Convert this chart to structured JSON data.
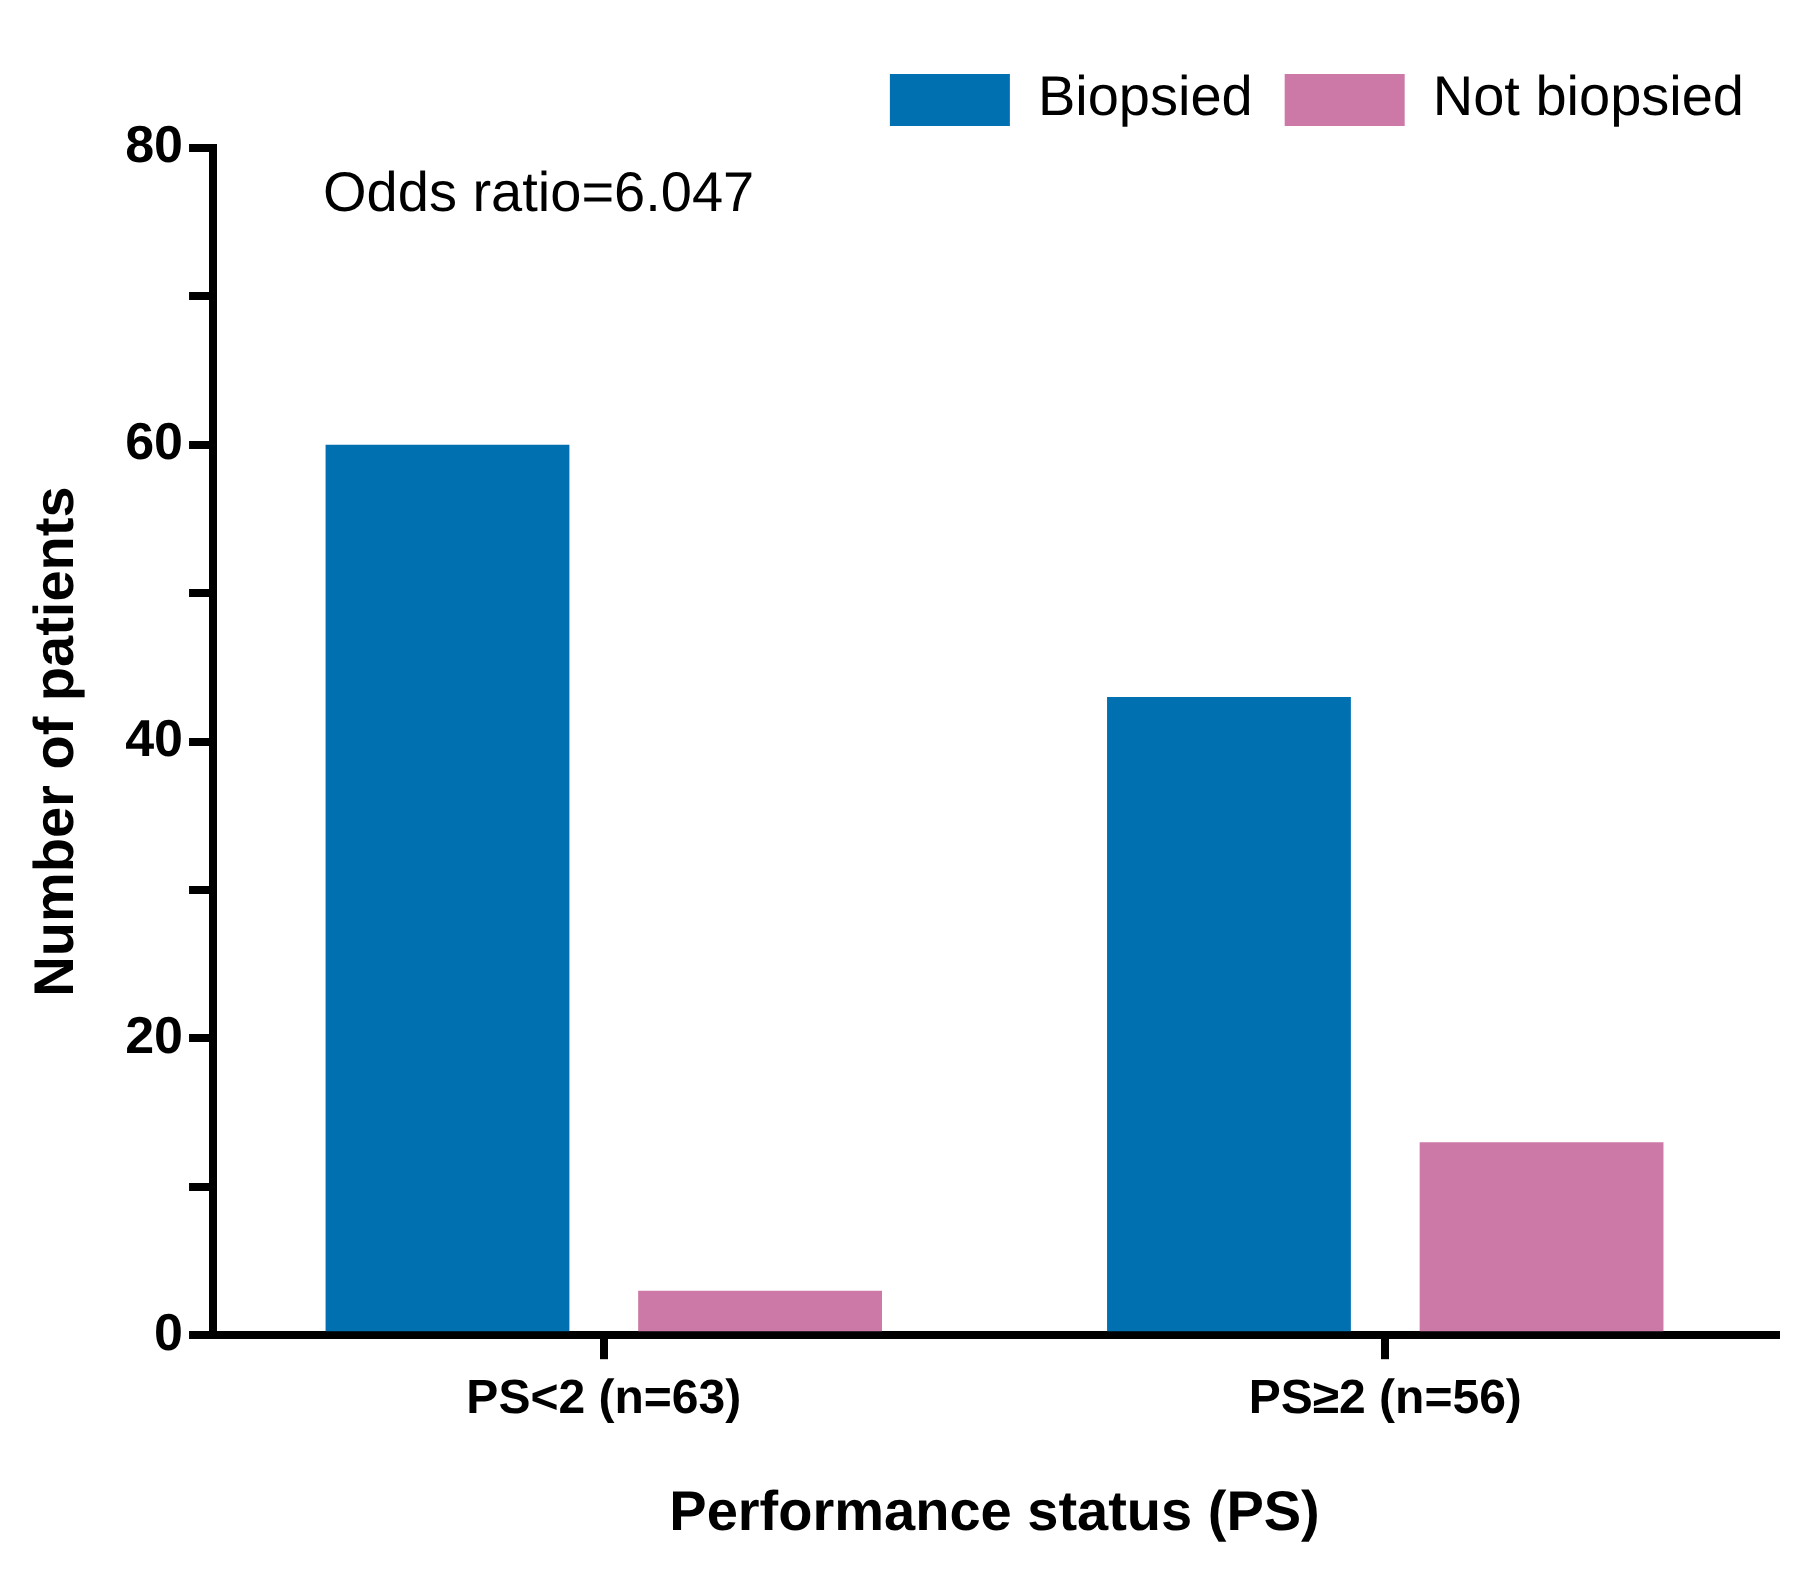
{
  "chart_data": {
    "type": "bar",
    "xlabel": "Performance status (PS)",
    "ylabel": "Number of patients",
    "categories": [
      "PS<2 (n=63)",
      "PS≥2 (n=56)"
    ],
    "series": [
      {
        "name": "Biopsied",
        "color": "#0070b0",
        "values": [
          60,
          43
        ]
      },
      {
        "name": "Not biopsied",
        "color": "#cc79a7",
        "values": [
          3,
          13
        ]
      }
    ],
    "ylim": [
      0,
      80
    ],
    "yticks": [
      0,
      {
        "value": 10,
        "label": null
      },
      20,
      {
        "value": 30,
        "label": null
      },
      40,
      {
        "value": 50,
        "label": null
      },
      60,
      {
        "value": 70,
        "label": null
      },
      80
    ],
    "grid": false,
    "legend": "top right",
    "annotations": [
      "Odds ratio=6.047"
    ]
  }
}
